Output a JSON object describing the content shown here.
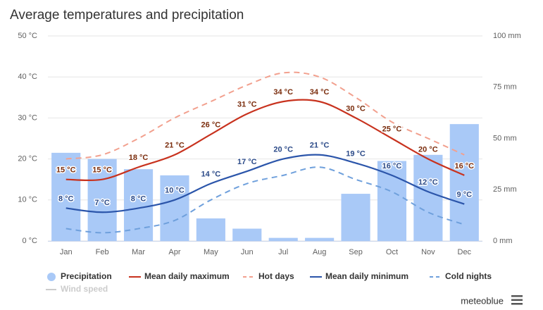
{
  "chart_data": {
    "type": "combo",
    "title": "Average temperatures and precipitation",
    "categories": [
      "Jan",
      "Feb",
      "Mar",
      "Apr",
      "May",
      "Jun",
      "Jul",
      "Aug",
      "Sep",
      "Oct",
      "Nov",
      "Dec"
    ],
    "ylim": [
      0,
      50
    ],
    "yticks": [
      {
        "value": 0,
        "label": "0 °C"
      },
      {
        "value": 10,
        "label": "10 °C"
      },
      {
        "value": 20,
        "label": "20 °C"
      },
      {
        "value": 30,
        "label": "30 °C"
      },
      {
        "value": 40,
        "label": "40 °C"
      },
      {
        "value": 50,
        "label": "50 °C"
      }
    ],
    "y2lim": [
      0,
      100
    ],
    "y2ticks": [
      {
        "value": 0,
        "label": "0 mm"
      },
      {
        "value": 25,
        "label": "25 mm"
      },
      {
        "value": 50,
        "label": "50 mm"
      },
      {
        "value": 75,
        "label": "75 mm"
      },
      {
        "value": 100,
        "label": "100 mm"
      }
    ],
    "grid": true,
    "legend": "bottom",
    "series": [
      {
        "name": "Precipitation",
        "type": "bar",
        "axis": "y2",
        "color": "#a9c9f7",
        "values": [
          43,
          40,
          35,
          32,
          11,
          6,
          1.5,
          1.5,
          23,
          39,
          42,
          57
        ]
      },
      {
        "name": "Mean daily maximum",
        "type": "line",
        "color": "#c8321e",
        "label_color": "#7a2c0c",
        "values": [
          15,
          15,
          18,
          21,
          26,
          31,
          34,
          34,
          30,
          25,
          20,
          16
        ],
        "value_labels": [
          "15 °C",
          "15 °C",
          "18 °C",
          "21 °C",
          "26 °C",
          "31 °C",
          "34 °C",
          "34 °C",
          "30 °C",
          "25 °C",
          "20 °C",
          "16 °C"
        ]
      },
      {
        "name": "Hot days",
        "type": "line",
        "dashed": true,
        "color": "#f2a08e",
        "values": [
          20,
          21,
          25,
          30,
          34,
          38,
          41,
          40,
          35,
          29,
          25,
          21
        ]
      },
      {
        "name": "Mean daily minimum",
        "type": "line",
        "color": "#2b55aa",
        "label_color": "#2b4a88",
        "values": [
          8,
          7,
          8,
          10,
          14,
          17,
          20,
          21,
          19,
          16,
          12,
          9
        ],
        "value_labels": [
          "8 °C",
          "7 °C",
          "8 °C",
          "10 °C",
          "14 °C",
          "17 °C",
          "20 °C",
          "21 °C",
          "19 °C",
          "16 °C",
          "12 °C",
          "9 °C"
        ]
      },
      {
        "name": "Cold nights",
        "type": "line",
        "dashed": true,
        "color": "#6fa0dc",
        "values": [
          3,
          2,
          3,
          5,
          10,
          14,
          16,
          18,
          15,
          12,
          7,
          4
        ]
      }
    ],
    "hidden_series": [
      {
        "name": "Wind speed",
        "color": "#cccccc"
      }
    ],
    "credit": "meteoblue"
  }
}
